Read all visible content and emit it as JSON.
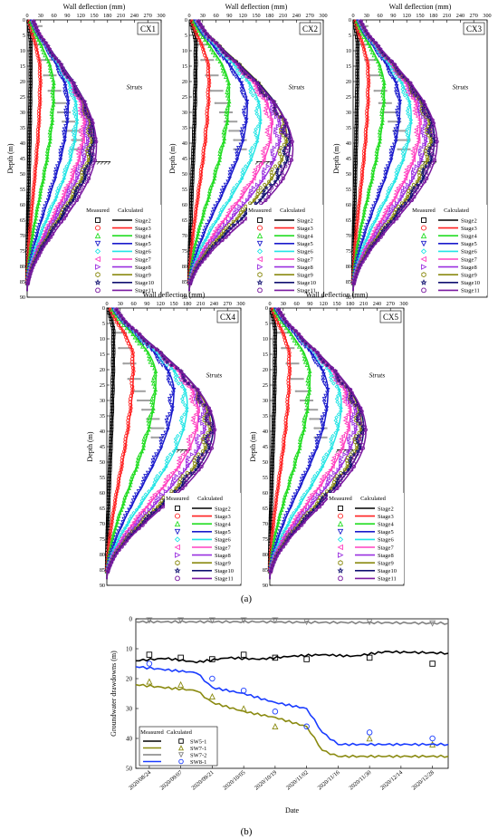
{
  "figure": {
    "label_a": "(a)",
    "label_b": "(b)"
  },
  "colors": {
    "Stage2": "#000000",
    "Stage3": "#ff2020",
    "Stage4": "#22dd22",
    "Stage5": "#1a1acc",
    "Stage6": "#22e5e5",
    "Stage7": "#ff40c0",
    "Stage8": "#9a30e0",
    "Stage9": "#8a8a10",
    "Stage10": "#101070",
    "Stage11": "#7a1aa0",
    "SW5-1": "#000000",
    "SW7-1": "#8a8a10",
    "SW7-2": "#808080",
    "SW8-1": "#1a3cff",
    "strut": "#a0a0a0"
  },
  "chart_data": [
    {
      "type": "line",
      "panel": "CX1",
      "title": "Wall deflection (mm)",
      "xlabel": "Wall deflection (mm)",
      "ylabel": "Depth (m)",
      "xlim": [
        0,
        300
      ],
      "ylim": [
        0,
        90
      ],
      "y_inverted": true,
      "x_ticks": [
        0,
        30,
        60,
        90,
        120,
        150,
        180,
        210,
        240,
        270,
        300
      ],
      "y_ticks": [
        0,
        5,
        10,
        15,
        20,
        25,
        30,
        35,
        40,
        45,
        50,
        55,
        60,
        65,
        70,
        75,
        80,
        85,
        90
      ],
      "legend_position": "bottom-right",
      "legend_headers": [
        "Measured",
        "Calculated"
      ],
      "annotation": "Struts",
      "strut_depths": [
        2,
        8,
        13,
        18,
        23,
        27,
        30,
        33,
        36,
        39,
        42
      ],
      "excavation_depth": 46,
      "series": [
        {
          "name": "Stage2",
          "marker": "square",
          "max_deflection": 8,
          "depth_of_max": 8
        },
        {
          "name": "Stage3",
          "marker": "circle",
          "max_deflection": 30,
          "depth_of_max": 18
        },
        {
          "name": "Stage4",
          "marker": "triangle-up",
          "max_deflection": 60,
          "depth_of_max": 22
        },
        {
          "name": "Stage5",
          "marker": "triangle-down",
          "max_deflection": 92,
          "depth_of_max": 27
        },
        {
          "name": "Stage6",
          "marker": "diamond",
          "max_deflection": 112,
          "depth_of_max": 31
        },
        {
          "name": "Stage7",
          "marker": "triangle-left",
          "max_deflection": 128,
          "depth_of_max": 34
        },
        {
          "name": "Stage8",
          "marker": "triangle-right",
          "max_deflection": 138,
          "depth_of_max": 36
        },
        {
          "name": "Stage9",
          "marker": "hexagon",
          "max_deflection": 145,
          "depth_of_max": 38
        },
        {
          "name": "Stage10",
          "marker": "star",
          "max_deflection": 150,
          "depth_of_max": 39
        },
        {
          "name": "Stage11",
          "marker": "octagon",
          "max_deflection": 155,
          "depth_of_max": 41
        }
      ]
    },
    {
      "type": "line",
      "panel": "CX2",
      "title": "Wall deflection (mm)",
      "xlabel": "Wall deflection (mm)",
      "ylabel": "Depth (m)",
      "xlim": [
        0,
        300
      ],
      "ylim": [
        0,
        90
      ],
      "y_inverted": true,
      "x_ticks": [
        0,
        30,
        60,
        90,
        120,
        150,
        180,
        210,
        240,
        270,
        300
      ],
      "y_ticks": [
        0,
        5,
        10,
        15,
        20,
        25,
        30,
        35,
        40,
        45,
        50,
        55,
        60,
        65,
        70,
        75,
        80,
        85,
        90
      ],
      "legend_position": "bottom-right",
      "legend_headers": [
        "Measured",
        "Calculated"
      ],
      "annotation": "Struts",
      "strut_depths": [
        2,
        8,
        13,
        18,
        23,
        27,
        30,
        33,
        36,
        39,
        42
      ],
      "excavation_depth": 46,
      "series": [
        {
          "name": "Stage2",
          "marker": "square",
          "max_deflection": 15,
          "depth_of_max": 8
        },
        {
          "name": "Stage3",
          "marker": "circle",
          "max_deflection": 45,
          "depth_of_max": 18
        },
        {
          "name": "Stage4",
          "marker": "triangle-up",
          "max_deflection": 90,
          "depth_of_max": 23
        },
        {
          "name": "Stage5",
          "marker": "triangle-down",
          "max_deflection": 130,
          "depth_of_max": 28
        },
        {
          "name": "Stage6",
          "marker": "diamond",
          "max_deflection": 160,
          "depth_of_max": 31
        },
        {
          "name": "Stage7",
          "marker": "triangle-left",
          "max_deflection": 185,
          "depth_of_max": 34
        },
        {
          "name": "Stage8",
          "marker": "triangle-right",
          "max_deflection": 205,
          "depth_of_max": 36
        },
        {
          "name": "Stage9",
          "marker": "hexagon",
          "max_deflection": 218,
          "depth_of_max": 38
        },
        {
          "name": "Stage10",
          "marker": "star",
          "max_deflection": 226,
          "depth_of_max": 40
        },
        {
          "name": "Stage11",
          "marker": "octagon",
          "max_deflection": 232,
          "depth_of_max": 42
        }
      ]
    },
    {
      "type": "line",
      "panel": "CX3",
      "title": "Wall deflection (mm)",
      "xlabel": "Wall deflection (mm)",
      "ylabel": "Depth (m)",
      "xlim": [
        0,
        300
      ],
      "ylim": [
        0,
        90
      ],
      "y_inverted": true,
      "x_ticks": [
        0,
        30,
        60,
        90,
        120,
        150,
        180,
        210,
        240,
        270,
        300
      ],
      "y_ticks": [
        0,
        5,
        10,
        15,
        20,
        25,
        30,
        35,
        40,
        45,
        50,
        55,
        60,
        65,
        70,
        75,
        80,
        85,
        90
      ],
      "legend_position": "bottom-right",
      "legend_headers": [
        "Measured",
        "Calculated"
      ],
      "annotation": "Struts",
      "strut_depths": [
        2,
        8,
        13,
        18,
        23,
        27,
        30,
        33,
        36,
        39,
        42
      ],
      "excavation_depth": 46,
      "series": [
        {
          "name": "Stage2",
          "marker": "square",
          "max_deflection": 10,
          "depth_of_max": 8
        },
        {
          "name": "Stage3",
          "marker": "circle",
          "max_deflection": 35,
          "depth_of_max": 18
        },
        {
          "name": "Stage4",
          "marker": "triangle-up",
          "max_deflection": 70,
          "depth_of_max": 22
        },
        {
          "name": "Stage5",
          "marker": "triangle-down",
          "max_deflection": 105,
          "depth_of_max": 27
        },
        {
          "name": "Stage6",
          "marker": "diamond",
          "max_deflection": 130,
          "depth_of_max": 31
        },
        {
          "name": "Stage7",
          "marker": "triangle-left",
          "max_deflection": 150,
          "depth_of_max": 34
        },
        {
          "name": "Stage8",
          "marker": "triangle-right",
          "max_deflection": 165,
          "depth_of_max": 36
        },
        {
          "name": "Stage9",
          "marker": "hexagon",
          "max_deflection": 175,
          "depth_of_max": 38
        },
        {
          "name": "Stage10",
          "marker": "star",
          "max_deflection": 182,
          "depth_of_max": 39
        },
        {
          "name": "Stage11",
          "marker": "octagon",
          "max_deflection": 188,
          "depth_of_max": 40
        }
      ]
    },
    {
      "type": "line",
      "panel": "CX4",
      "title": "Wall deflection (mm)",
      "xlabel": "Wall deflection (mm)",
      "ylabel": "Depth (m)",
      "xlim": [
        0,
        300
      ],
      "ylim": [
        0,
        90
      ],
      "y_inverted": true,
      "x_ticks": [
        0,
        30,
        60,
        90,
        120,
        150,
        180,
        210,
        240,
        270,
        300
      ],
      "y_ticks": [
        0,
        5,
        10,
        15,
        20,
        25,
        30,
        35,
        40,
        45,
        50,
        55,
        60,
        65,
        70,
        75,
        80,
        85,
        90
      ],
      "legend_position": "bottom-right",
      "legend_headers": [
        "Measured",
        "Calculated"
      ],
      "annotation": "Struts",
      "strut_depths": [
        2,
        8,
        13,
        18,
        23,
        27,
        30,
        33,
        36,
        39,
        42
      ],
      "excavation_depth": 46,
      "series": [
        {
          "name": "Stage2",
          "marker": "square",
          "max_deflection": 15,
          "depth_of_max": 8
        },
        {
          "name": "Stage3",
          "marker": "circle",
          "max_deflection": 60,
          "depth_of_max": 17
        },
        {
          "name": "Stage4",
          "marker": "triangle-up",
          "max_deflection": 110,
          "depth_of_max": 22
        },
        {
          "name": "Stage5",
          "marker": "triangle-down",
          "max_deflection": 150,
          "depth_of_max": 27
        },
        {
          "name": "Stage6",
          "marker": "diamond",
          "max_deflection": 180,
          "depth_of_max": 31
        },
        {
          "name": "Stage7",
          "marker": "triangle-left",
          "max_deflection": 205,
          "depth_of_max": 34
        },
        {
          "name": "Stage8",
          "marker": "triangle-right",
          "max_deflection": 222,
          "depth_of_max": 36
        },
        {
          "name": "Stage9",
          "marker": "hexagon",
          "max_deflection": 232,
          "depth_of_max": 38
        },
        {
          "name": "Stage10",
          "marker": "star",
          "max_deflection": 238,
          "depth_of_max": 39
        },
        {
          "name": "Stage11",
          "marker": "octagon",
          "max_deflection": 242,
          "depth_of_max": 40
        }
      ]
    },
    {
      "type": "line",
      "panel": "CX5",
      "title": "Wall deflection (mm)",
      "xlabel": "Wall deflection (mm)",
      "ylabel": "Depth (m)",
      "xlim": [
        0,
        300
      ],
      "ylim": [
        0,
        90
      ],
      "y_inverted": true,
      "x_ticks": [
        0,
        30,
        60,
        90,
        120,
        150,
        180,
        210,
        240,
        270,
        300
      ],
      "y_ticks": [
        0,
        5,
        10,
        15,
        20,
        25,
        30,
        35,
        40,
        45,
        50,
        55,
        60,
        65,
        70,
        75,
        80,
        85,
        90
      ],
      "legend_position": "bottom-right",
      "legend_headers": [
        "Measured",
        "Calculated"
      ],
      "annotation": "Struts",
      "strut_depths": [
        2,
        8,
        13,
        18,
        23,
        27,
        30,
        33,
        36,
        39,
        42
      ],
      "excavation_depth": 46,
      "series": [
        {
          "name": "Stage2",
          "marker": "square",
          "max_deflection": 12,
          "depth_of_max": 8
        },
        {
          "name": "Stage3",
          "marker": "circle",
          "max_deflection": 45,
          "depth_of_max": 17
        },
        {
          "name": "Stage4",
          "marker": "triangle-up",
          "max_deflection": 90,
          "depth_of_max": 22
        },
        {
          "name": "Stage5",
          "marker": "triangle-down",
          "max_deflection": 130,
          "depth_of_max": 27
        },
        {
          "name": "Stage6",
          "marker": "diamond",
          "max_deflection": 160,
          "depth_of_max": 31
        },
        {
          "name": "Stage7",
          "marker": "triangle-left",
          "max_deflection": 180,
          "depth_of_max": 34
        },
        {
          "name": "Stage8",
          "marker": "triangle-right",
          "max_deflection": 195,
          "depth_of_max": 36
        },
        {
          "name": "Stage9",
          "marker": "hexagon",
          "max_deflection": 205,
          "depth_of_max": 38
        },
        {
          "name": "Stage10",
          "marker": "star",
          "max_deflection": 210,
          "depth_of_max": 39
        },
        {
          "name": "Stage11",
          "marker": "octagon",
          "max_deflection": 215,
          "depth_of_max": 40
        }
      ]
    },
    {
      "type": "line",
      "panel": "groundwater",
      "xlabel": "Date",
      "ylabel": "Groundwater drawdowns (m)",
      "ylim": [
        0,
        50
      ],
      "y_inverted": true,
      "y_ticks": [
        0,
        10,
        20,
        30,
        40,
        50
      ],
      "x_ticks": [
        "2020/08/24",
        "2020/09/07",
        "2020/09/21",
        "2020/10/05",
        "2020/10/19",
        "2020/11/02",
        "2020/11/16",
        "2020/11/30",
        "2020/12/14",
        "2020/12/28"
      ],
      "xlim": [
        "2020/08/18",
        "2021/01/04"
      ],
      "legend_position": "bottom-left",
      "legend_headers": [
        "Measured",
        "Calculated"
      ],
      "series": [
        {
          "name": "SW5-1",
          "marker": "square",
          "measured": [
            [
              "2020/08/24",
              12
            ],
            [
              "2020/09/07",
              13
            ],
            [
              "2020/09/21",
              13.5
            ],
            [
              "2020/10/05",
              12
            ],
            [
              "2020/10/19",
              13
            ],
            [
              "2020/11/02",
              13.5
            ],
            [
              "2020/11/30",
              13
            ],
            [
              "2020/12/28",
              15
            ]
          ],
          "calculated": [
            [
              "2020/08/18",
              14
            ],
            [
              "2020/08/31",
              13.2
            ],
            [
              "2020/09/14",
              14.5
            ],
            [
              "2020/09/28",
              13
            ],
            [
              "2020/10/12",
              13.5
            ],
            [
              "2020/10/26",
              12.5
            ],
            [
              "2020/11/09",
              12
            ],
            [
              "2020/11/23",
              12.5
            ],
            [
              "2020/12/07",
              11
            ],
            [
              "2021/01/04",
              11.5
            ]
          ]
        },
        {
          "name": "SW7-1",
          "marker": "triangle-up",
          "measured": [
            [
              "2020/08/24",
              21
            ],
            [
              "2020/09/07",
              22
            ],
            [
              "2020/09/21",
              26
            ],
            [
              "2020/10/05",
              30
            ],
            [
              "2020/10/19",
              36
            ],
            [
              "2020/11/30",
              40
            ],
            [
              "2020/12/28",
              42
            ]
          ],
          "calculated": [
            [
              "2020/08/18",
              22
            ],
            [
              "2020/08/31",
              23
            ],
            [
              "2020/09/14",
              24
            ],
            [
              "2020/09/21",
              28
            ],
            [
              "2020/10/05",
              31
            ],
            [
              "2020/10/19",
              33
            ],
            [
              "2020/11/02",
              36
            ],
            [
              "2020/11/09",
              44
            ],
            [
              "2020/11/16",
              46
            ],
            [
              "2021/01/04",
              46
            ]
          ]
        },
        {
          "name": "SW7-2",
          "marker": "triangle-down",
          "measured": [
            [
              "2020/08/24",
              0.5
            ],
            [
              "2020/09/07",
              0.5
            ],
            [
              "2020/09/21",
              0.5
            ],
            [
              "2020/10/05",
              0.5
            ],
            [
              "2020/10/19",
              0.5
            ],
            [
              "2020/11/02",
              1
            ],
            [
              "2020/11/30",
              1
            ],
            [
              "2020/12/28",
              1.5
            ]
          ],
          "calculated": [
            [
              "2020/08/18",
              1
            ],
            [
              "2020/09/14",
              1
            ],
            [
              "2020/10/12",
              1
            ],
            [
              "2020/11/09",
              1.2
            ],
            [
              "2020/12/07",
              1.3
            ],
            [
              "2021/01/04",
              1.5
            ]
          ]
        },
        {
          "name": "SW8-1",
          "marker": "circle",
          "measured": [
            [
              "2020/08/24",
              15
            ],
            [
              "2020/09/21",
              20
            ],
            [
              "2020/10/05",
              24
            ],
            [
              "2020/10/19",
              31
            ],
            [
              "2020/11/02",
              36
            ],
            [
              "2020/11/30",
              38
            ],
            [
              "2020/12/28",
              40
            ]
          ],
          "calculated": [
            [
              "2020/08/18",
              16
            ],
            [
              "2020/08/31",
              17
            ],
            [
              "2020/09/14",
              18
            ],
            [
              "2020/09/21",
              23
            ],
            [
              "2020/10/05",
              25
            ],
            [
              "2020/10/19",
              28
            ],
            [
              "2020/11/02",
              30
            ],
            [
              "2020/11/09",
              38
            ],
            [
              "2020/11/16",
              42
            ],
            [
              "2021/01/04",
              42
            ]
          ]
        }
      ]
    }
  ]
}
